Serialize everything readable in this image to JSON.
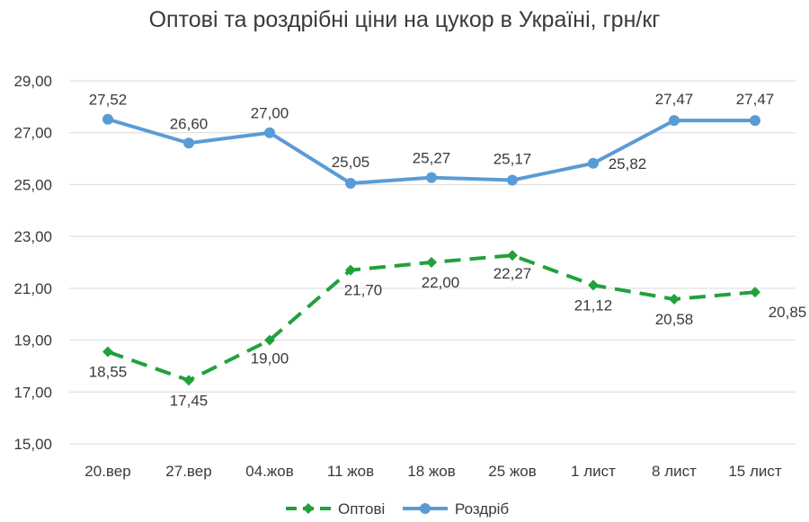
{
  "chart_data": {
    "type": "line",
    "title": "Оптові та роздрібні ціни на цукор в Україні, грн/кг",
    "categories": [
      "20.вер",
      "27.вер",
      "04.жов",
      "11 жов",
      "18 жов",
      "25 жов",
      "1 лист",
      "8 лист",
      "15 лист"
    ],
    "series": [
      {
        "name": "Оптові",
        "color": "#22a03c",
        "style": "dashed",
        "marker": "diamond",
        "values": [
          18.55,
          17.45,
          19.0,
          21.7,
          22.0,
          22.27,
          21.12,
          20.58,
          20.85
        ],
        "labels": [
          "18,55",
          "17,45",
          "19,00",
          "21,70",
          "22,00",
          "22,27",
          "21,12",
          "20,58",
          "20,85"
        ]
      },
      {
        "name": "Роздріб",
        "color": "#5b9bd5",
        "style": "solid",
        "marker": "circle",
        "values": [
          27.52,
          26.6,
          27.0,
          25.05,
          25.27,
          25.17,
          25.82,
          27.47,
          27.47
        ],
        "labels": [
          "27,52",
          "26,60",
          "27,00",
          "25,05",
          "25,27",
          "25,17",
          "25,82",
          "27,47",
          "27,47"
        ]
      }
    ],
    "ylim": [
      15,
      29
    ],
    "yticks": [
      "15,00",
      "17,00",
      "19,00",
      "21,00",
      "23,00",
      "25,00",
      "27,00",
      "29,00"
    ],
    "grid": true,
    "legend_position": "bottom"
  }
}
